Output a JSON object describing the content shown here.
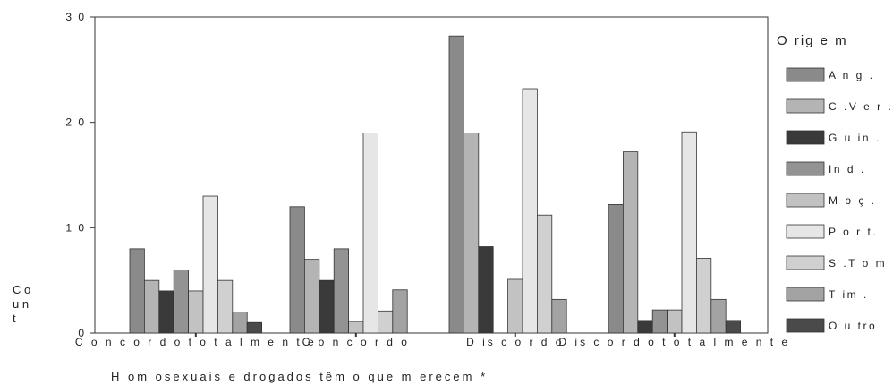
{
  "chart_data": {
    "type": "bar",
    "title": "",
    "xlabel": "H om osexuais e drogados têm  o que m erecem *",
    "ylabel": "C o u n t",
    "ylabel_lines": [
      "C o",
      "u n",
      "t"
    ],
    "ylim": [
      0,
      30
    ],
    "yticks": [
      0,
      10,
      20,
      30
    ],
    "ytick_labels": [
      "0",
      "1 0",
      "2 0",
      "3 0"
    ],
    "grid": false,
    "legend_position": "right",
    "legend_title": "O rig e m",
    "categories": [
      "C o n c o r d o   t o t a l m e n t e",
      "C o n c o r d o",
      "D is c o r d o",
      "D is c o r d o   t o t a l m e n t e"
    ],
    "series": [
      {
        "name": "A n g .",
        "color": "#8a8a8a",
        "values": [
          8,
          12,
          28.2,
          12.2
        ]
      },
      {
        "name": "C .V e r .",
        "color": "#b4b4b4",
        "values": [
          5,
          7,
          19,
          17.2
        ]
      },
      {
        "name": "G u in .",
        "color": "#3a3a3a",
        "values": [
          4,
          5,
          8.2,
          1.2
        ]
      },
      {
        "name": "In d .",
        "color": "#939393",
        "values": [
          6,
          8,
          0,
          2.2
        ]
      },
      {
        "name": "M o ç .",
        "color": "#c2c2c2",
        "values": [
          4,
          1.1,
          5.1,
          2.2
        ]
      },
      {
        "name": "P o r t.",
        "color": "#e6e6e6",
        "values": [
          13,
          19,
          23.2,
          19.1
        ]
      },
      {
        "name": "S .T o m .",
        "color": "#d0d0d0",
        "values": [
          5,
          2.1,
          11.2,
          7.1
        ]
      },
      {
        "name": "T im .",
        "color": "#a3a3a3",
        "values": [
          2,
          4.1,
          3.2,
          3.2
        ]
      },
      {
        "name": "O u tro",
        "color": "#4a4a4a",
        "values": [
          1,
          0,
          0,
          1.2
        ]
      }
    ]
  }
}
